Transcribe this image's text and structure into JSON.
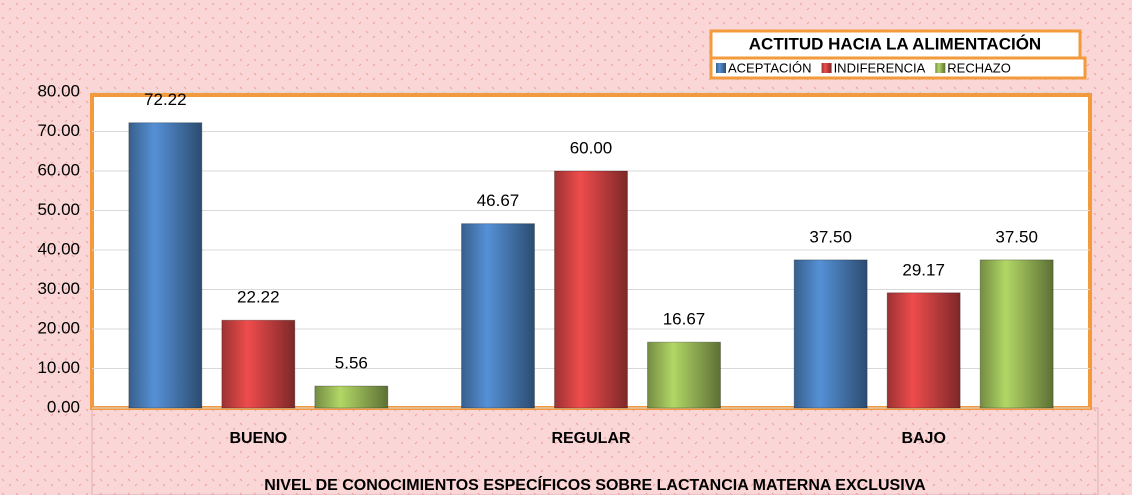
{
  "chart_data": {
    "type": "bar",
    "legend_title": "ACTITUD HACIA LA ALIMENTACIÓN",
    "x_label": "NIVEL DE CONOCIMIENTOS ESPECÍFICOS SOBRE LACTANCIA MATERNA EXCLUSIVA",
    "categories": [
      "BUENO",
      "REGULAR",
      "BAJO"
    ],
    "series": [
      {
        "name": "ACEPTACIÓN",
        "color": "#4a7ebb",
        "values": [
          72.22,
          46.67,
          37.5
        ],
        "value_labels": [
          "72.22",
          "46.67",
          "37.50"
        ]
      },
      {
        "name": "INDIFERENCIA",
        "color": "#d04242",
        "values": [
          22.22,
          60,
          29.17
        ],
        "value_labels": [
          "22.22",
          "60.00",
          "29.17"
        ]
      },
      {
        "name": "RECHAZO",
        "color": "#9bbb59",
        "values": [
          5.56,
          16.67,
          37.5
        ],
        "value_labels": [
          "5.56",
          "16.67",
          "37.50"
        ]
      }
    ],
    "ylim": [
      0,
      80
    ],
    "yticks": [
      {
        "value": 0,
        "label": "0.00"
      },
      {
        "value": 10,
        "label": "10.00"
      },
      {
        "value": 20,
        "label": "20.00"
      },
      {
        "value": 30,
        "label": "30.00"
      },
      {
        "value": 40,
        "label": "40.00"
      },
      {
        "value": 50,
        "label": "50.00"
      },
      {
        "value": 60,
        "label": "60.00"
      },
      {
        "value": 70,
        "label": "70.00"
      },
      {
        "value": 80,
        "label": "80.00"
      }
    ],
    "grid": true,
    "legend": "top-right"
  }
}
